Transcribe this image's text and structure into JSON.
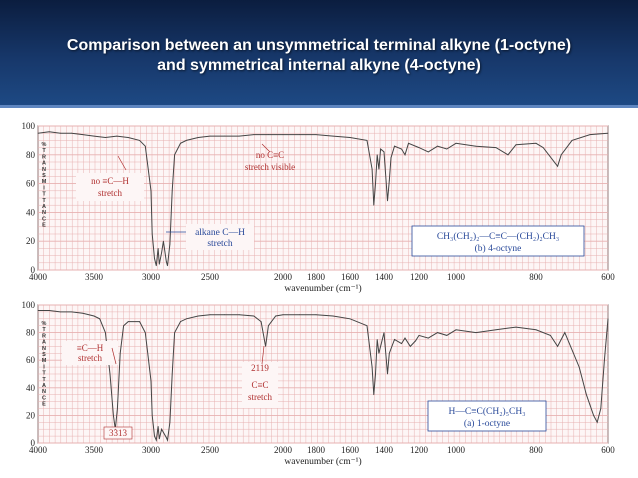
{
  "slide": {
    "title_line1": "Comparison between an unsymmetrical terminal alkyne (1-octyne)",
    "title_line2": "and symmetrical internal alkyne (4-octyne)",
    "header_color": "#17386b",
    "grid_color": "#e7b1b1",
    "trace_color": "#444444"
  },
  "chart_data": [
    {
      "type": "line",
      "name": "4-octyne spectrum",
      "xlabel": "wavenumber (cm⁻¹)",
      "ylabel": "% TRANSMITTANCE",
      "ylim": [
        0,
        100
      ],
      "xticks": [
        "4000",
        "3500",
        "3000",
        "2500",
        "2000",
        "1800",
        "1600",
        "1400",
        "1200",
        "1000",
        "800",
        "600"
      ],
      "yticks": [
        "0",
        "20",
        "40",
        "60",
        "80",
        "100"
      ],
      "grid": true,
      "annotations": {
        "no_cc_l1": "no C≡C",
        "no_cc_l2": "stretch visible",
        "no_ch_l1": "no ≡C—H",
        "no_ch_l2": "stretch",
        "alkane_l1": "alkane C—H",
        "alkane_l2": "stretch",
        "formula": "CH₃(CH₂)₂—C≡C—(CH₂)₂CH₃",
        "label": "(b) 4-octyne"
      },
      "points": [
        [
          4000,
          95
        ],
        [
          3900,
          96
        ],
        [
          3800,
          95
        ],
        [
          3700,
          95
        ],
        [
          3600,
          94
        ],
        [
          3500,
          93
        ],
        [
          3400,
          92
        ],
        [
          3300,
          93
        ],
        [
          3200,
          92
        ],
        [
          3100,
          90
        ],
        [
          3050,
          86
        ],
        [
          3000,
          55
        ],
        [
          2990,
          25
        ],
        [
          2970,
          8
        ],
        [
          2955,
          3
        ],
        [
          2940,
          15
        ],
        [
          2930,
          4
        ],
        [
          2910,
          12
        ],
        [
          2895,
          20
        ],
        [
          2870,
          6
        ],
        [
          2860,
          3
        ],
        [
          2840,
          18
        ],
        [
          2820,
          55
        ],
        [
          2800,
          80
        ],
        [
          2750,
          88
        ],
        [
          2700,
          90
        ],
        [
          2600,
          92
        ],
        [
          2500,
          93
        ],
        [
          2400,
          93
        ],
        [
          2300,
          93
        ],
        [
          2200,
          94
        ],
        [
          2100,
          94
        ],
        [
          2000,
          94
        ],
        [
          1900,
          94
        ],
        [
          1800,
          94
        ],
        [
          1700,
          93
        ],
        [
          1600,
          92
        ],
        [
          1500,
          90
        ],
        [
          1470,
          70
        ],
        [
          1460,
          45
        ],
        [
          1450,
          60
        ],
        [
          1440,
          80
        ],
        [
          1430,
          70
        ],
        [
          1420,
          84
        ],
        [
          1400,
          82
        ],
        [
          1380,
          48
        ],
        [
          1370,
          62
        ],
        [
          1360,
          78
        ],
        [
          1340,
          86
        ],
        [
          1300,
          84
        ],
        [
          1280,
          80
        ],
        [
          1260,
          88
        ],
        [
          1200,
          85
        ],
        [
          1150,
          82
        ],
        [
          1100,
          86
        ],
        [
          1050,
          84
        ],
        [
          1000,
          88
        ],
        [
          950,
          86
        ],
        [
          900,
          85
        ],
        [
          870,
          80
        ],
        [
          850,
          87
        ],
        [
          800,
          88
        ],
        [
          780,
          85
        ],
        [
          740,
          72
        ],
        [
          730,
          80
        ],
        [
          700,
          90
        ],
        [
          650,
          94
        ],
        [
          600,
          95
        ]
      ]
    },
    {
      "type": "line",
      "name": "1-octyne spectrum",
      "xlabel": "wavenumber (cm⁻¹)",
      "ylabel": "% TRANSMITTANCE",
      "ylim": [
        0,
        100
      ],
      "xticks": [
        "4000",
        "3500",
        "3000",
        "2500",
        "2000",
        "1800",
        "1600",
        "1400",
        "1200",
        "1000",
        "800",
        "600"
      ],
      "yticks": [
        "0",
        "20",
        "40",
        "60",
        "80",
        "100"
      ],
      "grid": true,
      "annotations": {
        "ch_l1": "≡C—H",
        "ch_l2": "stretch",
        "peak_3313": "3313",
        "peak_2119": "2119",
        "cc_l1": "C≡C",
        "cc_l2": "stretch",
        "formula": "H—C≡C(CH₂)₅CH₃",
        "label": "(a) 1-octyne"
      },
      "points": [
        [
          4000,
          96
        ],
        [
          3900,
          96
        ],
        [
          3800,
          95
        ],
        [
          3700,
          95
        ],
        [
          3600,
          94
        ],
        [
          3500,
          92
        ],
        [
          3450,
          90
        ],
        [
          3400,
          80
        ],
        [
          3360,
          50
        ],
        [
          3330,
          20
        ],
        [
          3313,
          10
        ],
        [
          3295,
          25
        ],
        [
          3270,
          65
        ],
        [
          3240,
          85
        ],
        [
          3200,
          88
        ],
        [
          3100,
          88
        ],
        [
          3050,
          80
        ],
        [
          3000,
          45
        ],
        [
          2990,
          20
        ],
        [
          2970,
          5
        ],
        [
          2955,
          2
        ],
        [
          2940,
          12
        ],
        [
          2930,
          3
        ],
        [
          2910,
          10
        ],
        [
          2870,
          4
        ],
        [
          2860,
          2
        ],
        [
          2840,
          15
        ],
        [
          2820,
          50
        ],
        [
          2800,
          80
        ],
        [
          2750,
          88
        ],
        [
          2700,
          90
        ],
        [
          2600,
          92
        ],
        [
          2500,
          93
        ],
        [
          2400,
          93
        ],
        [
          2300,
          93
        ],
        [
          2200,
          92
        ],
        [
          2150,
          88
        ],
        [
          2119,
          70
        ],
        [
          2100,
          85
        ],
        [
          2050,
          92
        ],
        [
          2000,
          93
        ],
        [
          1900,
          93
        ],
        [
          1800,
          93
        ],
        [
          1700,
          92
        ],
        [
          1600,
          90
        ],
        [
          1500,
          85
        ],
        [
          1470,
          55
        ],
        [
          1460,
          35
        ],
        [
          1450,
          50
        ],
        [
          1440,
          75
        ],
        [
          1430,
          65
        ],
        [
          1400,
          80
        ],
        [
          1380,
          50
        ],
        [
          1370,
          65
        ],
        [
          1340,
          75
        ],
        [
          1300,
          72
        ],
        [
          1280,
          76
        ],
        [
          1250,
          70
        ],
        [
          1220,
          74
        ],
        [
          1200,
          78
        ],
        [
          1150,
          76
        ],
        [
          1100,
          80
        ],
        [
          1050,
          78
        ],
        [
          1000,
          82
        ],
        [
          950,
          80
        ],
        [
          900,
          82
        ],
        [
          850,
          84
        ],
        [
          800,
          82
        ],
        [
          760,
          78
        ],
        [
          740,
          70
        ],
        [
          720,
          80
        ],
        [
          680,
          55
        ],
        [
          660,
          35
        ],
        [
          640,
          20
        ],
        [
          630,
          15
        ],
        [
          620,
          25
        ],
        [
          610,
          60
        ],
        [
          600,
          90
        ]
      ]
    }
  ]
}
